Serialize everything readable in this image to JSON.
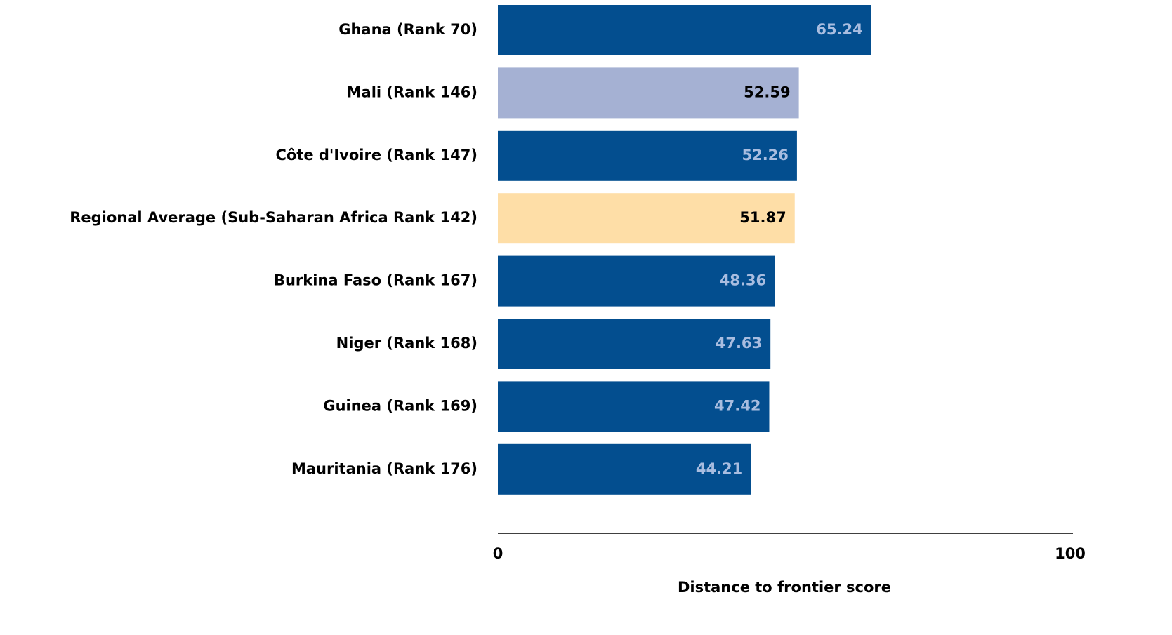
{
  "chart_data": {
    "type": "barh",
    "categories": [
      "Ghana (Rank 70)",
      "Mali (Rank 146)",
      "Côte d'Ivoire (Rank 147)",
      "Regional Average (Sub-Saharan Africa Rank 142)",
      "Burkina Faso (Rank 167)",
      "Niger (Rank 168)",
      "Guinea (Rank 169)",
      "Mauritania (Rank 176)"
    ],
    "values": [
      65.24,
      52.59,
      52.26,
      51.87,
      48.36,
      47.63,
      47.42,
      44.21
    ],
    "colors": [
      "#034e8f",
      "#a5b1d3",
      "#034e8f",
      "#fedea7",
      "#034e8f",
      "#034e8f",
      "#034e8f",
      "#034e8f"
    ],
    "xlim": [
      0,
      100
    ],
    "xticks": [
      0,
      100
    ],
    "xlabel": "Distance to frontier score"
  }
}
